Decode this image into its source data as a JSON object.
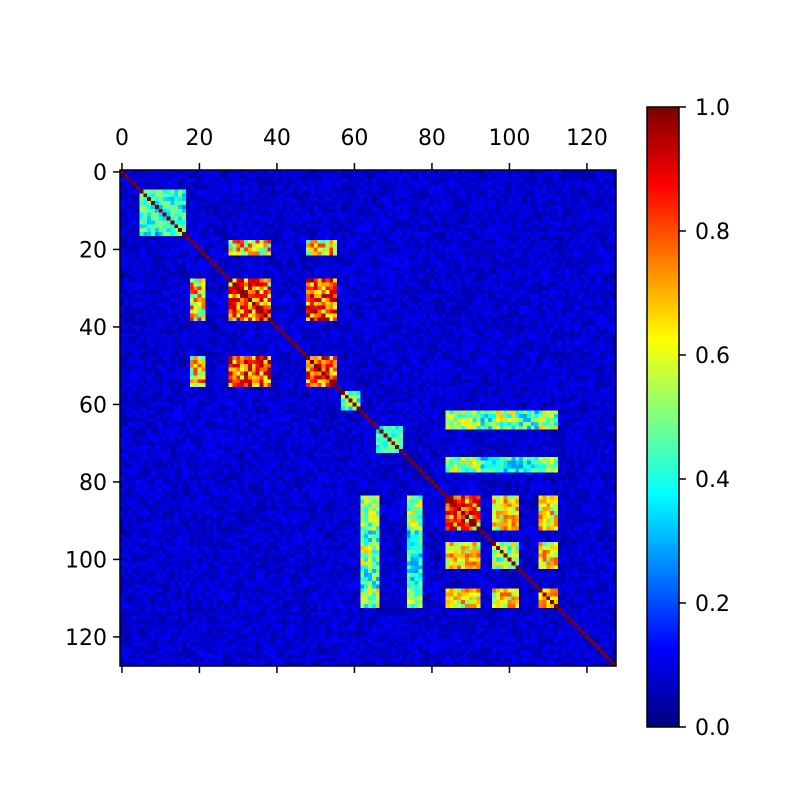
{
  "chart_data": {
    "type": "heatmap",
    "title": "",
    "xlabel": "",
    "ylabel": "",
    "matrix_size": 128,
    "x_ticks": [
      0,
      20,
      40,
      60,
      80,
      100,
      120
    ],
    "y_ticks": [
      0,
      20,
      40,
      60,
      80,
      100,
      120
    ],
    "x_tick_position": "top",
    "value_range": [
      0.0,
      1.0
    ],
    "colormap": "jet",
    "colorbar": {
      "ticks": [
        0.0,
        0.2,
        0.4,
        0.6,
        0.8,
        1.0
      ],
      "tick_labels": [
        "0.0",
        "0.2",
        "0.4",
        "0.6",
        "0.8",
        "1.0"
      ],
      "placement": "right"
    },
    "diagonal_value": 1.0,
    "background_value": 0.08,
    "blocks": [
      {
        "rows": [
          5,
          16
        ],
        "cols": [
          5,
          16
        ],
        "value": 0.45
      },
      {
        "rows": [
          28,
          38
        ],
        "cols": [
          28,
          38
        ],
        "value": 0.85
      },
      {
        "rows": [
          28,
          38
        ],
        "cols": [
          48,
          55
        ],
        "value": 0.85
      },
      {
        "rows": [
          48,
          55
        ],
        "cols": [
          28,
          38
        ],
        "value": 0.85
      },
      {
        "rows": [
          48,
          55
        ],
        "cols": [
          48,
          55
        ],
        "value": 0.85
      },
      {
        "rows": [
          18,
          21
        ],
        "cols": [
          28,
          38
        ],
        "value": 0.75
      },
      {
        "rows": [
          18,
          21
        ],
        "cols": [
          48,
          55
        ],
        "value": 0.75
      },
      {
        "rows": [
          57,
          61
        ],
        "cols": [
          57,
          61
        ],
        "value": 0.5
      },
      {
        "rows": [
          66,
          72
        ],
        "cols": [
          66,
          72
        ],
        "value": 0.45
      },
      {
        "rows": [
          84,
          92
        ],
        "cols": [
          84,
          92
        ],
        "value": 0.85
      },
      {
        "rows": [
          84,
          92
        ],
        "cols": [
          96,
          102
        ],
        "value": 0.7
      },
      {
        "rows": [
          84,
          92
        ],
        "cols": [
          108,
          112
        ],
        "value": 0.7
      },
      {
        "rows": [
          96,
          102
        ],
        "cols": [
          84,
          92
        ],
        "value": 0.7
      },
      {
        "rows": [
          96,
          102
        ],
        "cols": [
          96,
          102
        ],
        "value": 0.6
      },
      {
        "rows": [
          96,
          102
        ],
        "cols": [
          108,
          112
        ],
        "value": 0.7
      },
      {
        "rows": [
          108,
          112
        ],
        "cols": [
          84,
          92
        ],
        "value": 0.65
      },
      {
        "rows": [
          108,
          112
        ],
        "cols": [
          96,
          102
        ],
        "value": 0.6
      },
      {
        "rows": [
          108,
          112
        ],
        "cols": [
          108,
          112
        ],
        "value": 0.7
      },
      {
        "rows": [
          62,
          66
        ],
        "cols": [
          84,
          92
        ],
        "value": 0.6
      },
      {
        "rows": [
          62,
          66
        ],
        "cols": [
          96,
          102
        ],
        "value": 0.6
      },
      {
        "rows": [
          62,
          66
        ],
        "cols": [
          108,
          112
        ],
        "value": 0.6
      },
      {
        "rows": [
          74,
          77
        ],
        "cols": [
          84,
          92
        ],
        "value": 0.6
      },
      {
        "rows": [
          74,
          77
        ],
        "cols": [
          108,
          112
        ],
        "value": 0.55
      },
      {
        "rows": [
          84,
          112
        ],
        "cols": [
          62,
          66
        ],
        "value": 0.5
      },
      {
        "rows": [
          84,
          112
        ],
        "cols": [
          74,
          77
        ],
        "value": 0.45
      }
    ]
  }
}
